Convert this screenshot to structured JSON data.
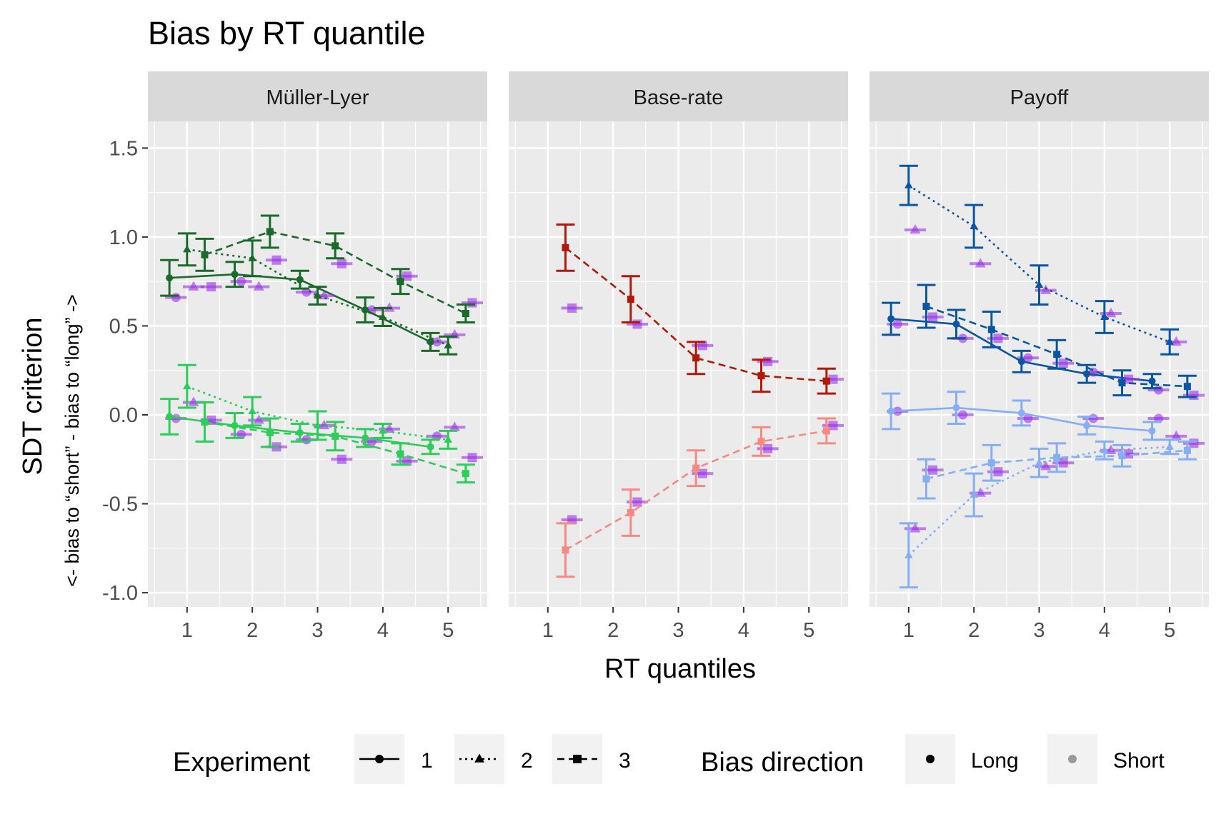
{
  "chart_data": {
    "type": "line",
    "title": "Bias by RT quantile",
    "xlabel": "RT quantiles",
    "ylabel": "SDT criterion",
    "ylabel_sub": "<- bias to “short” - bias to “long” ->",
    "x": [
      1,
      2,
      3,
      4,
      5
    ],
    "xlim": [
      0.4,
      5.6
    ],
    "ylim": [
      -1.08,
      1.65
    ],
    "y_ticks": [
      "1.5",
      "1.0",
      "0.5",
      "0.0",
      "-0.5",
      "-1.0"
    ],
    "x_ticks": [
      "1",
      "2",
      "3",
      "4",
      "5"
    ],
    "grid": true,
    "legend_position": "bottom",
    "legend": {
      "experiment_title": "Experiment",
      "experiment_items": [
        {
          "label": "1",
          "shape": "circle",
          "linetype": "solid"
        },
        {
          "label": "2",
          "shape": "triangle",
          "linetype": "dotted"
        },
        {
          "label": "3",
          "shape": "square",
          "linetype": "dashed"
        }
      ],
      "direction_title": "Bias direction",
      "direction_items": [
        {
          "label": "Long",
          "color": "#000000"
        },
        {
          "label": "Short",
          "color": "#9a9a9a"
        }
      ]
    },
    "model_prediction_color": "#9932e6",
    "panels": [
      {
        "name": "Müller-Lyer",
        "series": [
          {
            "experiment": "1",
            "direction": "Long",
            "color": "#1a6b2a",
            "values": [
              0.77,
              0.79,
              0.76,
              0.59,
              0.41
            ],
            "errors": [
              0.1,
              0.07,
              0.05,
              0.07,
              0.05
            ],
            "model": [
              0.66,
              0.75,
              0.69,
              0.59,
              0.41
            ]
          },
          {
            "experiment": "2",
            "direction": "Long",
            "color": "#1a6b2a",
            "values": [
              0.93,
              0.88,
              0.67,
              0.55,
              0.39
            ],
            "errors": [
              0.09,
              0.1,
              0.05,
              0.05,
              0.05
            ],
            "model": [
              0.72,
              0.72,
              0.67,
              0.6,
              0.45
            ]
          },
          {
            "experiment": "3",
            "direction": "Long",
            "color": "#1a6b2a",
            "values": [
              0.9,
              1.03,
              0.95,
              0.75,
              0.57
            ],
            "errors": [
              0.09,
              0.09,
              0.07,
              0.07,
              0.05
            ],
            "model": [
              0.72,
              0.87,
              0.85,
              0.78,
              0.63
            ]
          },
          {
            "experiment": "1",
            "direction": "Short",
            "color": "#2ecc5a",
            "values": [
              -0.01,
              -0.06,
              -0.1,
              -0.13,
              -0.18
            ],
            "errors": [
              0.1,
              0.07,
              0.05,
              0.05,
              0.04
            ],
            "model": [
              -0.02,
              -0.11,
              -0.14,
              -0.15,
              -0.12
            ]
          },
          {
            "experiment": "2",
            "direction": "Short",
            "color": "#2ecc5a",
            "values": [
              0.16,
              0.02,
              -0.06,
              -0.09,
              -0.14
            ],
            "errors": [
              0.12,
              0.08,
              0.08,
              0.04,
              0.05
            ],
            "model": [
              0.07,
              -0.03,
              -0.06,
              -0.08,
              -0.07
            ]
          },
          {
            "experiment": "3",
            "direction": "Short",
            "color": "#2ecc5a",
            "values": [
              -0.04,
              -0.1,
              -0.12,
              -0.22,
              -0.33
            ],
            "errors": [
              0.11,
              0.08,
              0.08,
              0.06,
              0.05
            ],
            "model": [
              -0.03,
              -0.18,
              -0.25,
              -0.26,
              -0.24
            ]
          }
        ]
      },
      {
        "name": "Base-rate",
        "series": [
          {
            "experiment": "3",
            "direction": "Long",
            "color": "#b01a0a",
            "values": [
              0.94,
              0.65,
              0.32,
              0.22,
              0.19
            ],
            "errors": [
              0.13,
              0.13,
              0.09,
              0.09,
              0.07
            ],
            "model": [
              0.6,
              0.51,
              0.39,
              0.3,
              0.2
            ]
          },
          {
            "experiment": "3",
            "direction": "Short",
            "color": "#f58a84",
            "values": [
              -0.76,
              -0.55,
              -0.3,
              -0.15,
              -0.09
            ],
            "errors": [
              0.15,
              0.13,
              0.1,
              0.08,
              0.07
            ],
            "model": [
              -0.59,
              -0.49,
              -0.33,
              -0.19,
              -0.06
            ]
          }
        ]
      },
      {
        "name": "Payoff",
        "series": [
          {
            "experiment": "1",
            "direction": "Long",
            "color": "#0a56a3",
            "values": [
              0.54,
              0.51,
              0.3,
              0.23,
              0.19
            ],
            "errors": [
              0.09,
              0.08,
              0.06,
              0.05,
              0.04
            ],
            "model": [
              0.51,
              0.43,
              0.32,
              0.24,
              0.14
            ]
          },
          {
            "experiment": "2",
            "direction": "Long",
            "color": "#0a56a3",
            "values": [
              1.29,
              1.06,
              0.73,
              0.55,
              0.41
            ],
            "errors": [
              0.11,
              0.12,
              0.11,
              0.09,
              0.07
            ],
            "model": [
              1.04,
              0.85,
              0.7,
              0.57,
              0.41
            ]
          },
          {
            "experiment": "3",
            "direction": "Long",
            "color": "#0a56a3",
            "values": [
              0.61,
              0.48,
              0.34,
              0.18,
              0.16
            ],
            "errors": [
              0.12,
              0.1,
              0.08,
              0.07,
              0.06
            ],
            "model": [
              0.55,
              0.43,
              0.29,
              0.2,
              0.11
            ]
          },
          {
            "experiment": "1",
            "direction": "Short",
            "color": "#85aef5",
            "values": [
              0.02,
              0.04,
              0.01,
              -0.06,
              -0.09
            ],
            "errors": [
              0.1,
              0.09,
              0.07,
              0.05,
              0.05
            ],
            "model": [
              0.02,
              0.0,
              -0.02,
              -0.02,
              -0.02
            ]
          },
          {
            "experiment": "2",
            "direction": "Short",
            "color": "#85aef5",
            "values": [
              -0.79,
              -0.45,
              -0.27,
              -0.2,
              -0.18
            ],
            "errors": [
              0.18,
              0.12,
              0.08,
              0.05,
              0.04
            ],
            "model": [
              -0.64,
              -0.44,
              -0.29,
              -0.2,
              -0.12
            ]
          },
          {
            "experiment": "3",
            "direction": "Short",
            "color": "#85aef5",
            "values": [
              -0.36,
              -0.27,
              -0.24,
              -0.23,
              -0.2
            ],
            "errors": [
              0.11,
              0.1,
              0.08,
              0.06,
              0.05
            ],
            "model": [
              -0.31,
              -0.32,
              -0.27,
              -0.22,
              -0.16
            ]
          }
        ]
      }
    ]
  }
}
